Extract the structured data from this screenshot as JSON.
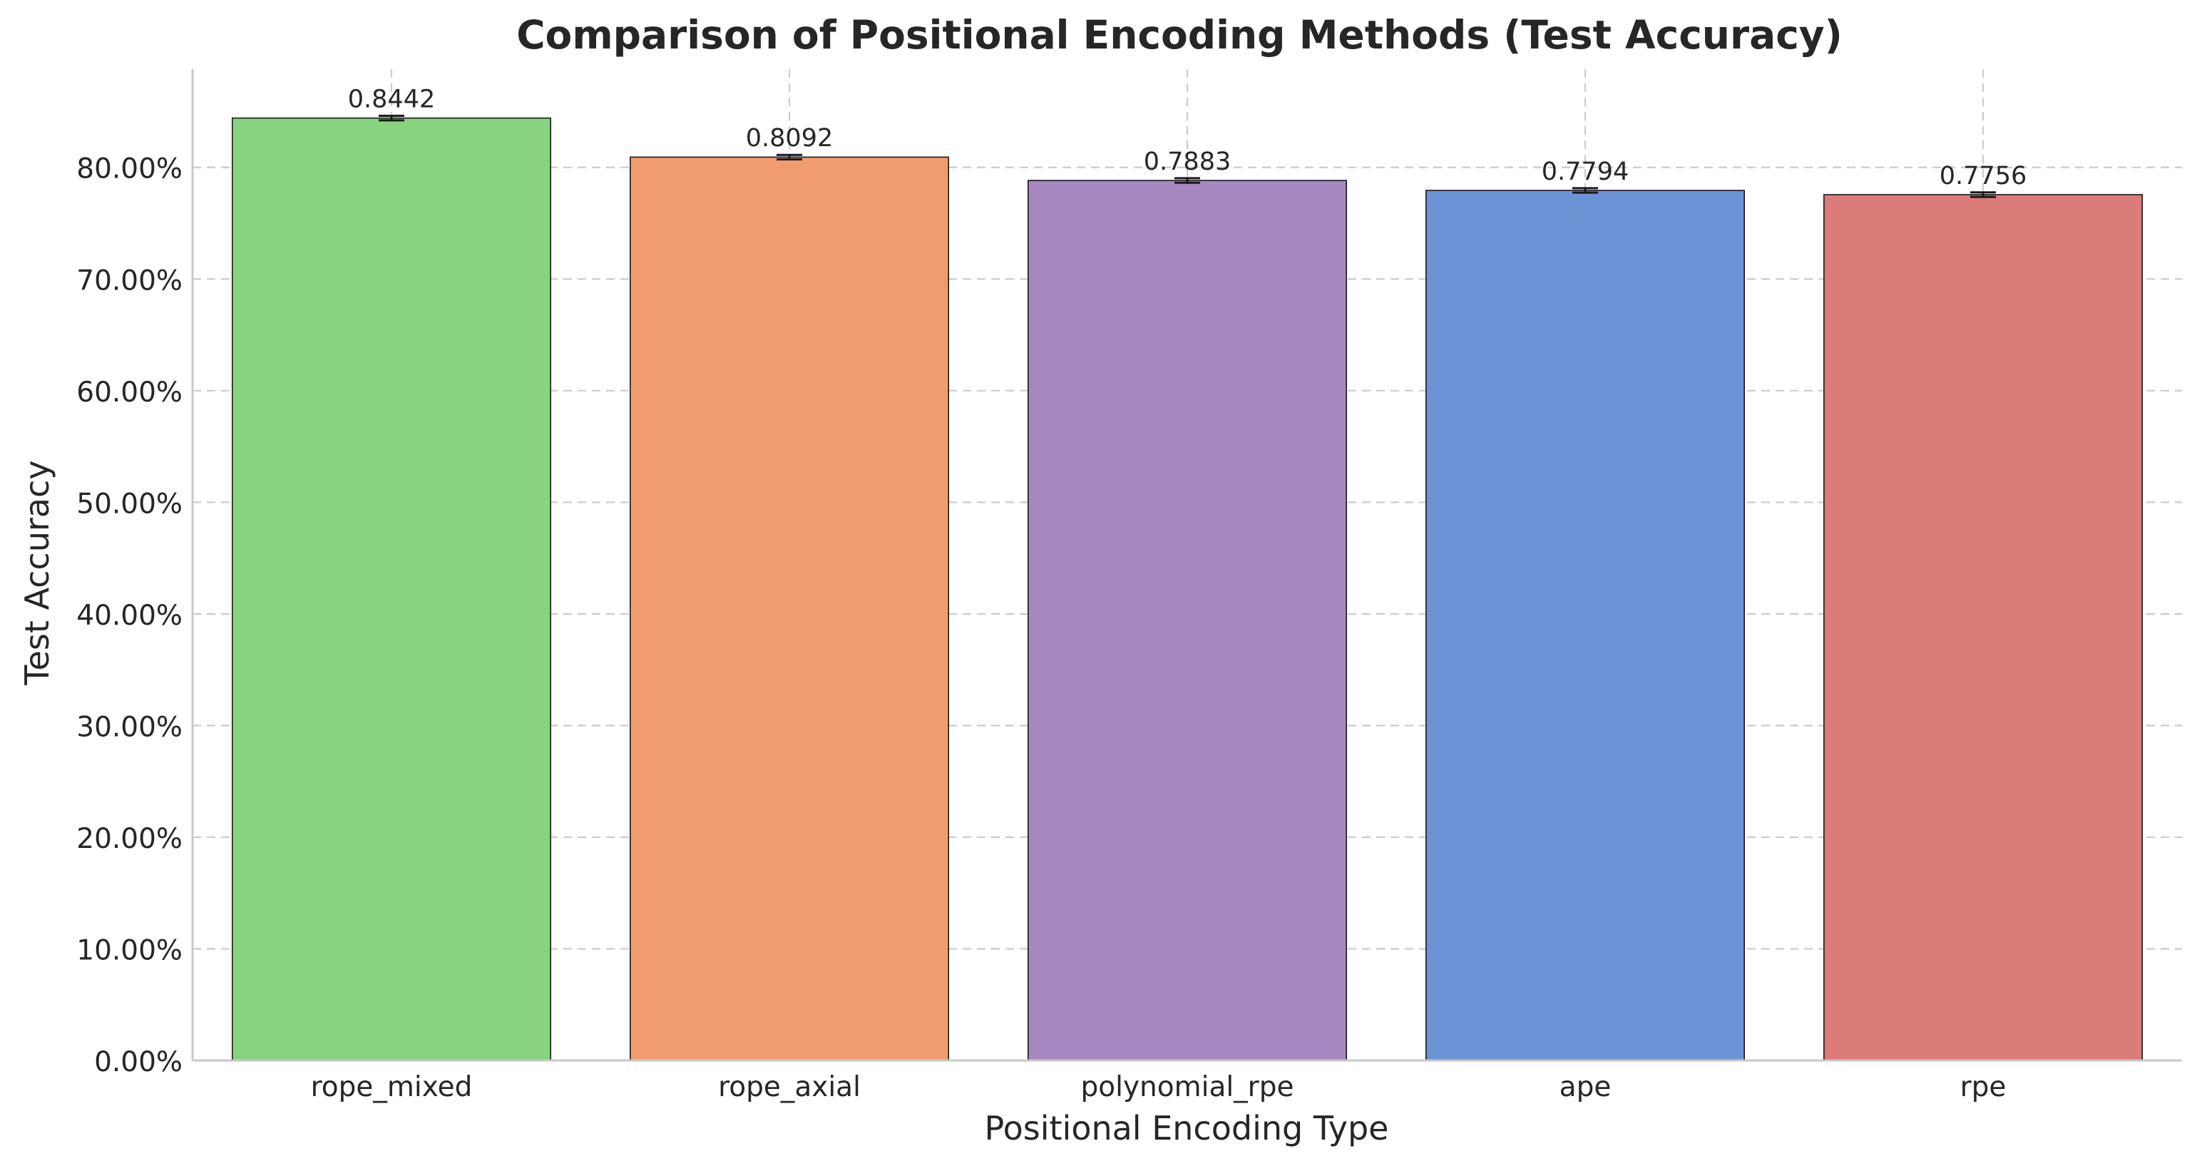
{
  "chart_data": {
    "type": "bar",
    "title": "Comparison of Positional Encoding Methods (Test Accuracy)",
    "xlabel": "Positional Encoding Type",
    "ylabel": "Test Accuracy",
    "categories": [
      "rope_mixed",
      "rope_axial",
      "polynomial_rpe",
      "ape",
      "rpe"
    ],
    "values": [
      0.8442,
      0.8092,
      0.7883,
      0.7794,
      0.7756
    ],
    "value_labels": [
      "0.8442",
      "0.8092",
      "0.7883",
      "0.7794",
      "0.7756"
    ],
    "error_bars": [
      0.002,
      0.002,
      0.002,
      0.002,
      0.002
    ],
    "colors": [
      "#88d37f",
      "#f09c6e",
      "#a788c0",
      "#6d93d7",
      "#dc7c7a"
    ],
    "ylim": [
      0,
      0.888
    ],
    "yticks": [
      0,
      0.1,
      0.2,
      0.3,
      0.4,
      0.5,
      0.6,
      0.7,
      0.8
    ],
    "ytick_labels": [
      "0.00%",
      "10.00%",
      "20.00%",
      "30.00%",
      "40.00%",
      "50.00%",
      "60.00%",
      "70.00%",
      "80.00%"
    ],
    "grid": true,
    "legend": "none"
  }
}
